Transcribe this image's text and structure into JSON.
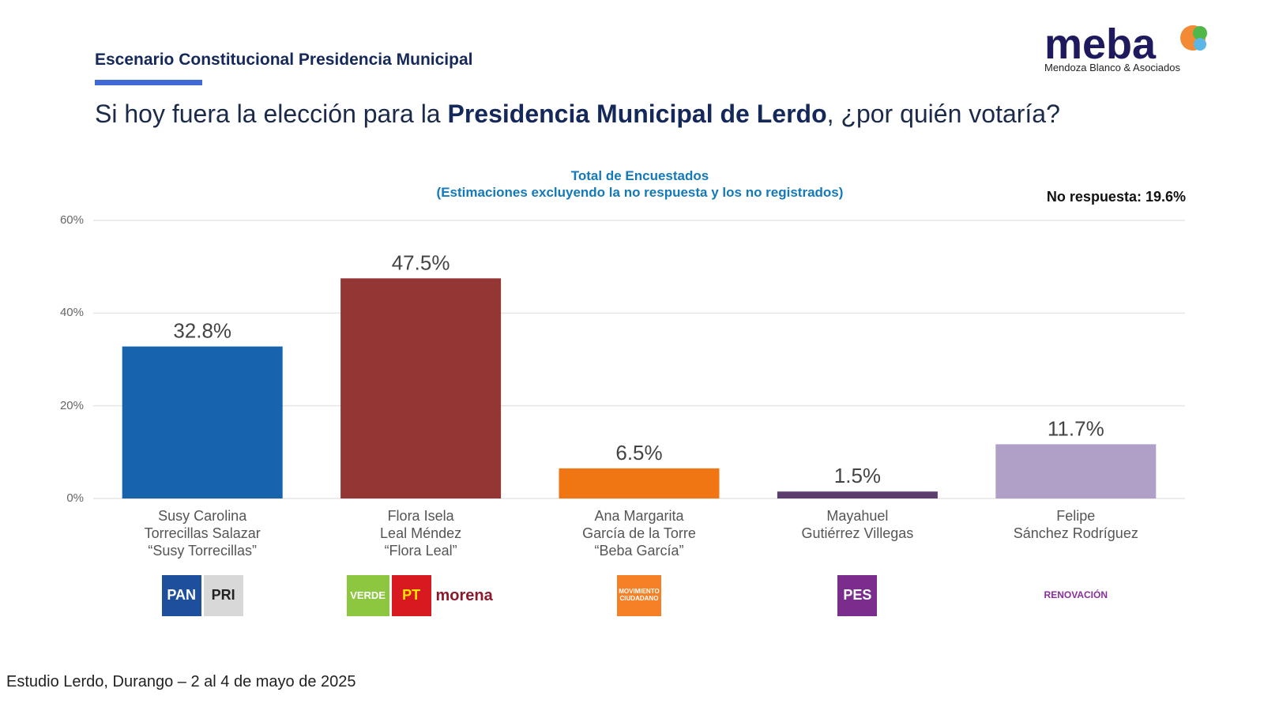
{
  "header": {
    "section_title": "Escenario Constitucional Presidencia Municipal",
    "question_pre": "Si hoy fuera la elección para la ",
    "question_bold": "Presidencia Municipal de Lerdo",
    "question_post": ", ¿por quién votaría?",
    "logo": {
      "name": "meba",
      "tagline": "Mendoza Blanco & Asociados"
    }
  },
  "footer": "Estudio Lerdo, Durango – 2 al 4 de mayo de 2025",
  "chart_data": {
    "type": "bar",
    "title": "Total de Encuestados",
    "subtitle": "(Estimaciones excluyendo la no respuesta y los no registrados)",
    "annotation": "No respuesta: 19.6%",
    "ylim": [
      0,
      60
    ],
    "yticks": [
      "0%",
      "20%",
      "40%",
      "60%"
    ],
    "ytick_values": [
      0,
      20,
      40,
      60
    ],
    "grid": true,
    "categories": [
      [
        "Susy Carolina",
        "Torrecillas Salazar",
        "“Susy Torrecillas”"
      ],
      [
        "Flora Isela",
        "Leal Méndez",
        "“Flora Leal”"
      ],
      [
        "Ana Margarita",
        "García de la Torre",
        "“Beba García”"
      ],
      [
        "Mayahuel",
        "Gutiérrez Villegas"
      ],
      [
        "Felipe",
        "Sánchez Rodríguez"
      ]
    ],
    "values": [
      32.8,
      47.5,
      6.5,
      1.5,
      11.7
    ],
    "labels": [
      "32.8%",
      "47.5%",
      "6.5%",
      "1.5%",
      "11.7%"
    ],
    "colors": [
      "#1763ac",
      "#943634",
      "#f07513",
      "#5b3e6e",
      "#b0a0c8"
    ],
    "parties": [
      [
        {
          "text": "PAN",
          "bg": "#1d4f9c",
          "fg": "#fff"
        },
        {
          "text": "PRI",
          "bg": "#d8d8d8",
          "fg": "#222"
        }
      ],
      [
        {
          "text": "VERDE",
          "bg": "#8dc63f",
          "fg": "#fff"
        },
        {
          "text": "PT",
          "bg": "#d71920",
          "fg": "#ffe600"
        },
        {
          "text": "morena",
          "bg": "#fff",
          "fg": "#8b1a2b"
        }
      ],
      [
        {
          "text": "MOVIMIENTO CIUDADANO",
          "bg": "#f58025",
          "fg": "#fff"
        }
      ],
      [
        {
          "text": "PES",
          "bg": "#7b2d8e",
          "fg": "#fff"
        }
      ],
      [
        {
          "text": "RENOVACIÓN",
          "bg": "#fff",
          "fg": "#8a2e9c"
        }
      ]
    ]
  }
}
